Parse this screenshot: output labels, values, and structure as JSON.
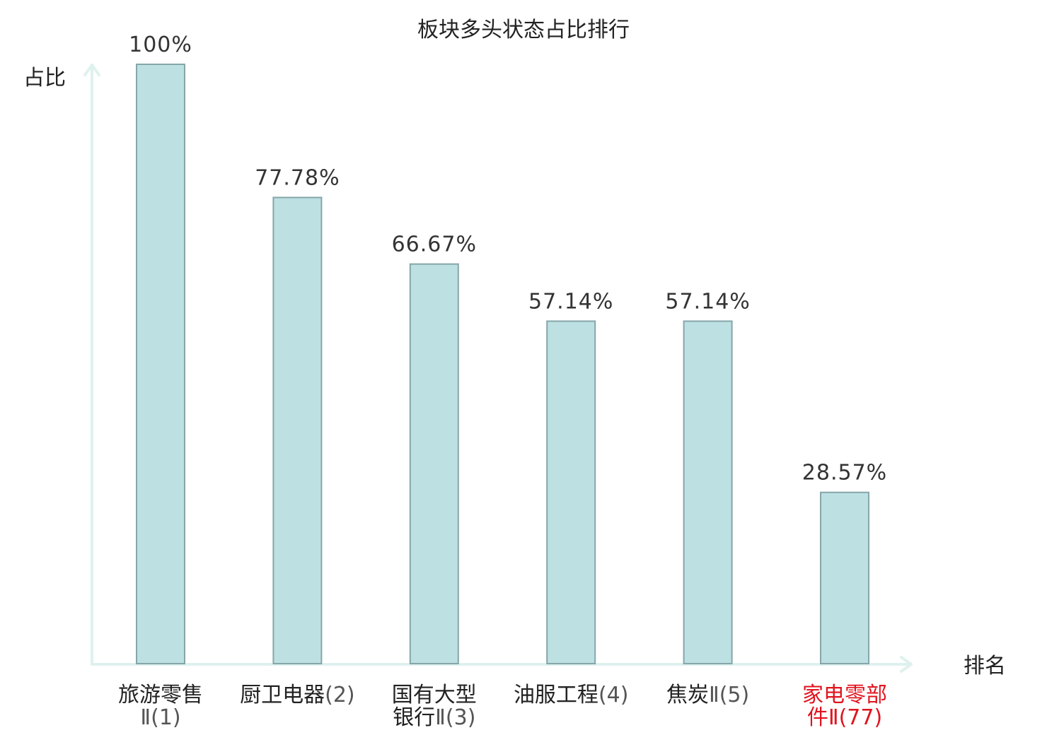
{
  "chart_data": {
    "type": "bar",
    "title": "板块多头状态占比排行",
    "ylabel": "占比",
    "xlabel": "排名",
    "ylim": [
      0,
      100
    ],
    "grid": false,
    "categories": [
      {
        "lines": [
          {
            "text": "旅游零售",
            "suffix": ""
          },
          {
            "text": "",
            "suffix": "Ⅱ(1)"
          }
        ],
        "highlight": false
      },
      {
        "lines": [
          {
            "text": "厨卫电器",
            "suffix": "(2)"
          }
        ],
        "highlight": false
      },
      {
        "lines": [
          {
            "text": "国有大型",
            "suffix": ""
          },
          {
            "text": "银行",
            "suffix": "Ⅱ(3)"
          }
        ],
        "highlight": false
      },
      {
        "lines": [
          {
            "text": "油服工程",
            "suffix": "(4)"
          }
        ],
        "highlight": false
      },
      {
        "lines": [
          {
            "text": "焦炭",
            "suffix": "Ⅱ(5)"
          }
        ],
        "highlight": false
      },
      {
        "lines": [
          {
            "text": "家电零部",
            "suffix": ""
          },
          {
            "text": "件",
            "suffix": "Ⅱ(77)"
          }
        ],
        "highlight": true
      }
    ],
    "values": [
      100,
      77.78,
      66.67,
      57.14,
      57.14,
      28.57
    ],
    "value_labels": [
      "100%",
      "77.78%",
      "66.67%",
      "57.14%",
      "57.14%",
      "28.57%"
    ],
    "colors": {
      "bar_fill": "#bde0e3",
      "bar_stroke": "#86a6a9",
      "axis": "#dff1ef",
      "highlight_text": "#e0141e"
    }
  }
}
